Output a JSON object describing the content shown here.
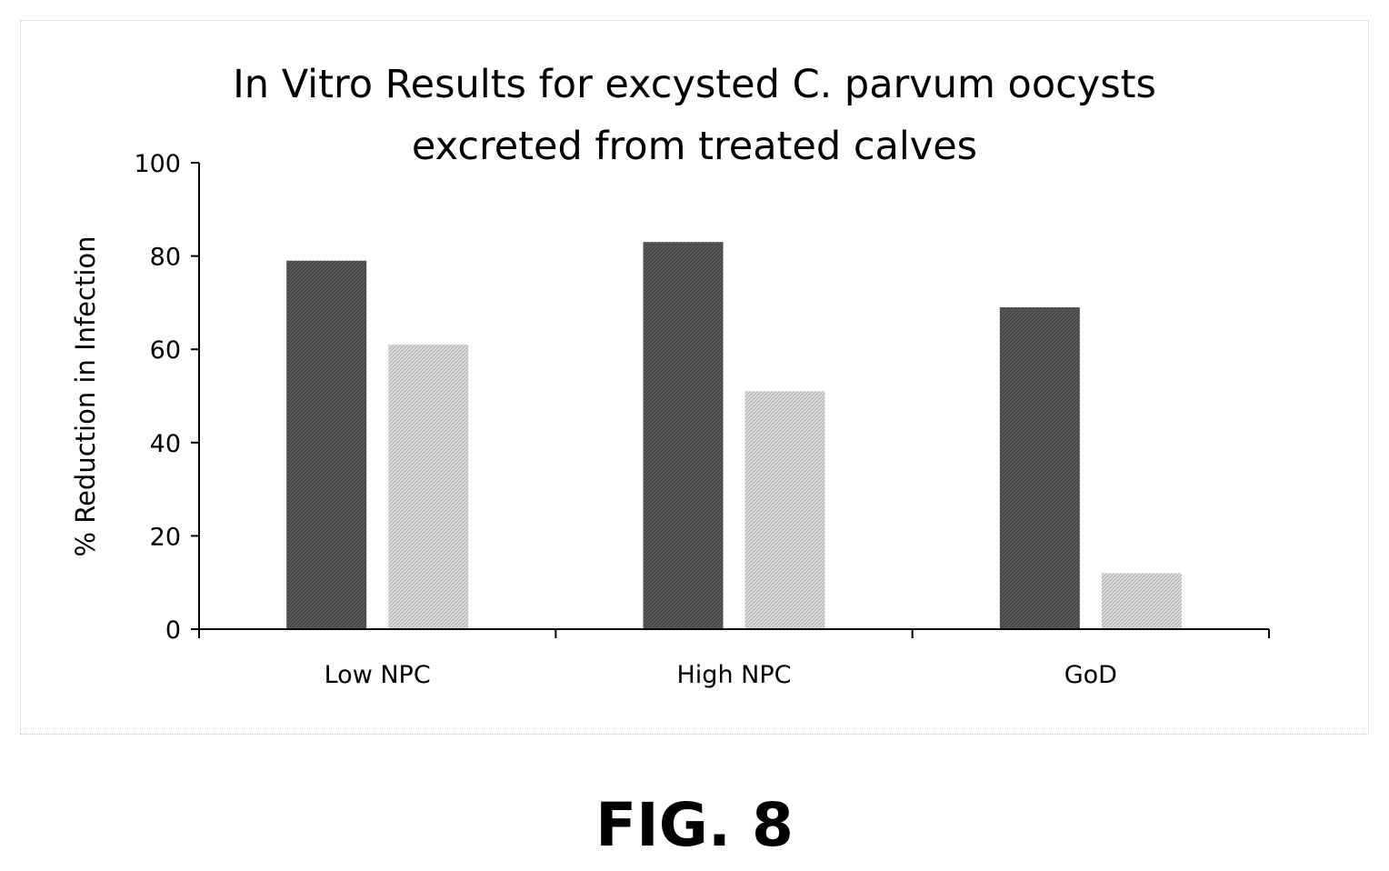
{
  "figure_label": "FIG. 8",
  "colors": {
    "series_dark": "#595959",
    "series_light": "#d6d6d6",
    "axis": "#000000"
  },
  "chart_data": {
    "type": "bar",
    "title": "In Vitro Results for excysted C. parvum oocysts excreted from treated calves",
    "title_lines": [
      "In Vitro Results for excysted C. parvum oocysts",
      "excreted from treated calves"
    ],
    "xlabel": "",
    "ylabel": "% Reduction in Infection",
    "categories": [
      "Low NPC",
      "High NPC",
      "GoD"
    ],
    "series": [
      {
        "values": [
          79,
          83,
          69
        ]
      },
      {
        "values": [
          61,
          51,
          12
        ]
      }
    ],
    "ylim": [
      0,
      100
    ],
    "yticks": [
      0,
      20,
      40,
      60,
      80,
      100
    ],
    "grid": false,
    "legend": "none"
  }
}
